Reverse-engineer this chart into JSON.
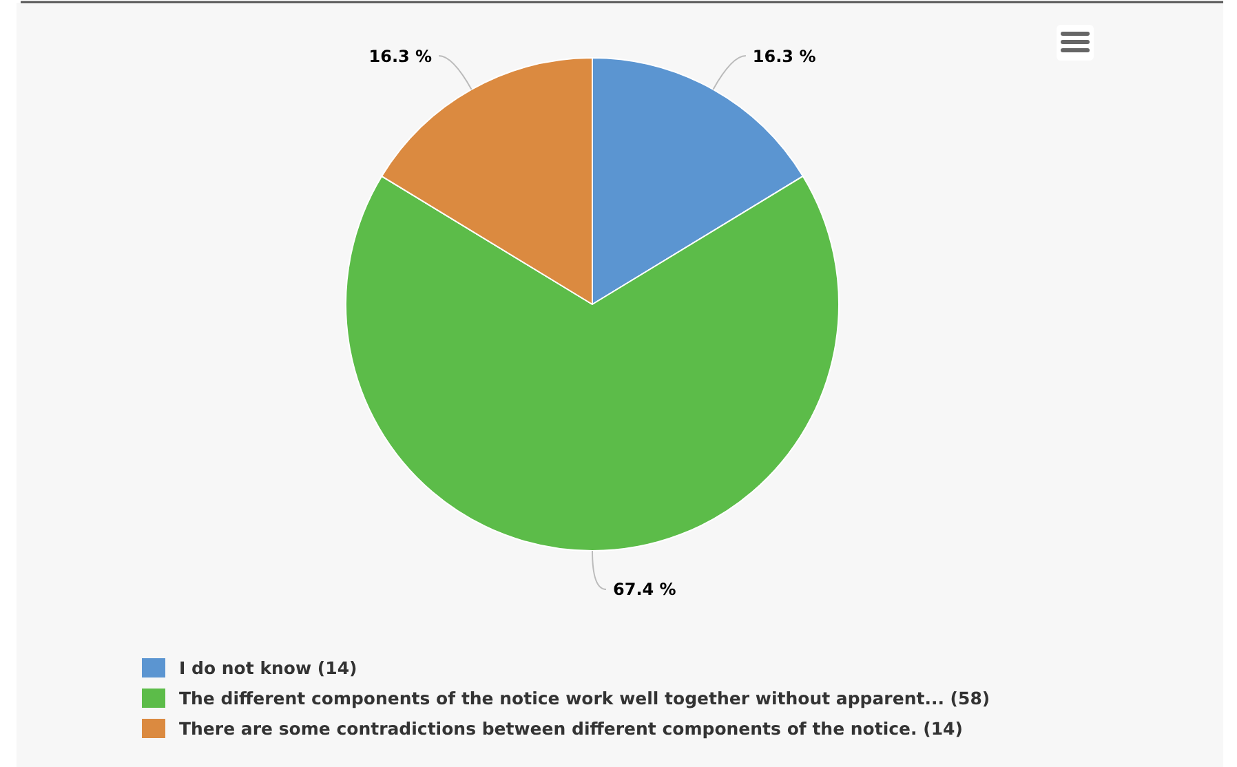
{
  "chart_data": {
    "type": "pie",
    "categories": [
      "I do not know (14)",
      "The different components of the notice work well together without apparent... (58)",
      "There are some contradictions between different components of the notice. (14)"
    ],
    "values": [
      16.3,
      67.4,
      16.3
    ],
    "colors": [
      "#5b95d1",
      "#5cbc49",
      "#db8a40"
    ],
    "value_labels": [
      "16.3 %",
      "67.4 %",
      "16.3 %"
    ],
    "legend": "bottom"
  }
}
